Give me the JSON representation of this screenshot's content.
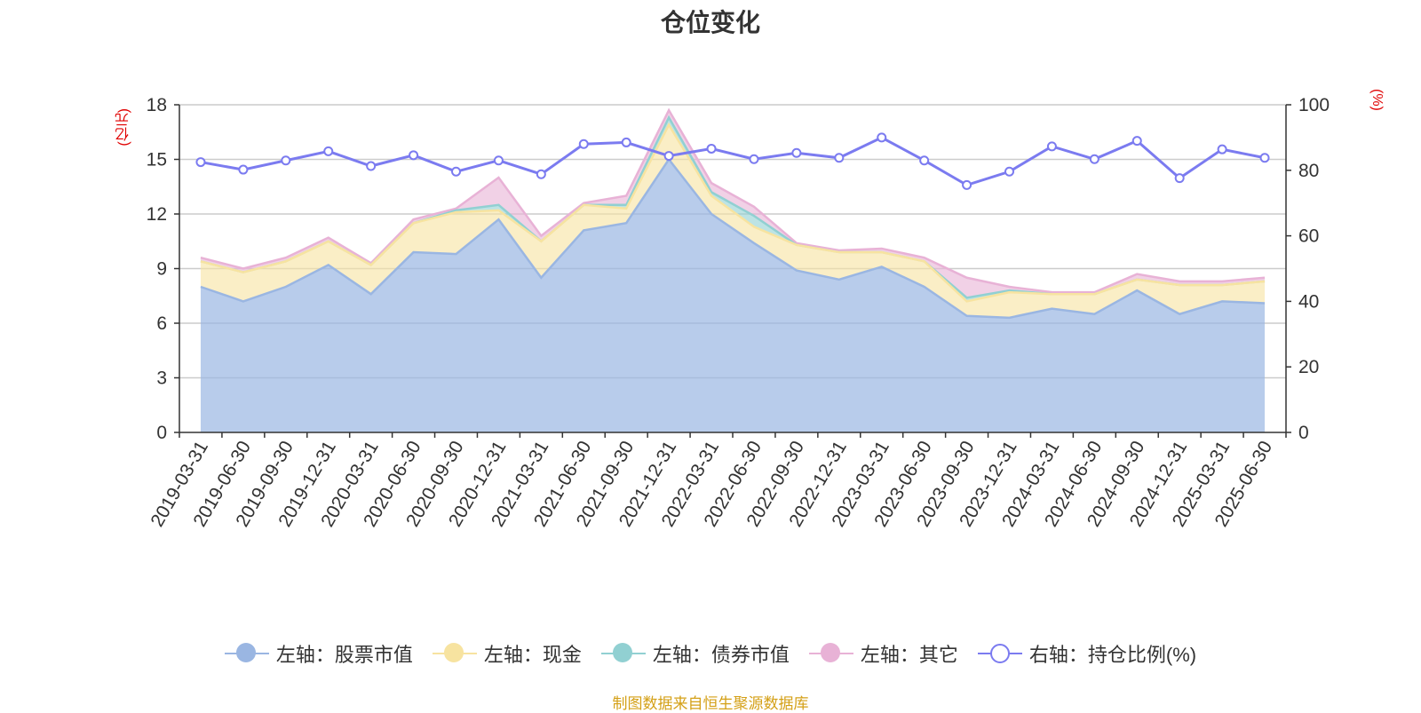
{
  "chart_data": {
    "type": "area",
    "title": "仓位变化",
    "left_axis_unit": "(亿元)",
    "right_axis_unit": "(%)",
    "source": "制图数据来自恒生聚源数据库",
    "categories": [
      "2019-03-31",
      "2019-06-30",
      "2019-09-30",
      "2019-12-31",
      "2020-03-31",
      "2020-06-30",
      "2020-09-30",
      "2020-12-31",
      "2021-03-31",
      "2021-06-30",
      "2021-09-30",
      "2021-12-31",
      "2022-03-31",
      "2022-06-30",
      "2022-09-30",
      "2022-12-31",
      "2023-03-31",
      "2023-06-30",
      "2023-09-30",
      "2023-12-31",
      "2024-03-31",
      "2024-06-30",
      "2024-09-30",
      "2024-12-31",
      "2025-03-31",
      "2025-06-30"
    ],
    "ylim_left": [
      0,
      18
    ],
    "yticks_left": [
      0,
      3,
      6,
      9,
      12,
      15,
      18
    ],
    "ylim_right": [
      0,
      100
    ],
    "yticks_right": [
      0,
      20,
      40,
      60,
      80,
      100
    ],
    "grid": true,
    "legend_position": "bottom",
    "series": [
      {
        "name": "左轴：股票市值",
        "axis": "left",
        "stacked": true,
        "color": "#9ab6e2",
        "values": [
          8.0,
          7.2,
          8.0,
          9.2,
          7.6,
          9.9,
          9.8,
          11.7,
          8.5,
          11.1,
          11.5,
          15.0,
          12.0,
          10.4,
          8.9,
          8.4,
          9.1,
          8.0,
          6.4,
          6.3,
          6.8,
          6.5,
          7.8,
          6.5,
          7.2,
          7.1
        ]
      },
      {
        "name": "左轴：现金",
        "axis": "left",
        "stacked": true,
        "color": "#f7e3a0",
        "values": [
          1.4,
          1.6,
          1.4,
          1.3,
          1.6,
          1.6,
          2.3,
          0.5,
          2.0,
          1.4,
          0.8,
          1.9,
          1.0,
          0.9,
          1.4,
          1.5,
          0.8,
          1.4,
          0.8,
          1.4,
          0.8,
          1.1,
          0.6,
          1.6,
          0.9,
          1.2
        ]
      },
      {
        "name": "左轴：债券市值",
        "axis": "left",
        "stacked": true,
        "color": "#91d0d2",
        "values": [
          0.0,
          0.0,
          0.0,
          0.0,
          0.0,
          0.0,
          0.1,
          0.3,
          0.0,
          0.0,
          0.2,
          0.4,
          0.2,
          0.6,
          0.0,
          0.0,
          0.0,
          0.0,
          0.2,
          0.1,
          0.0,
          0.0,
          0.0,
          0.0,
          0.0,
          0.0
        ]
      },
      {
        "name": "左轴：其它",
        "axis": "left",
        "stacked": true,
        "color": "#e8b2d6",
        "values": [
          0.2,
          0.2,
          0.2,
          0.2,
          0.1,
          0.2,
          0.1,
          1.5,
          0.3,
          0.1,
          0.5,
          0.4,
          0.5,
          0.5,
          0.1,
          0.1,
          0.2,
          0.2,
          1.1,
          0.2,
          0.1,
          0.1,
          0.3,
          0.2,
          0.2,
          0.2
        ]
      },
      {
        "name": "右轴：持仓比例(%)",
        "axis": "right",
        "stacked": false,
        "color": "#7b7bf0",
        "values": [
          82.5,
          80.2,
          83.0,
          85.8,
          81.3,
          84.6,
          79.6,
          83.0,
          78.8,
          88.0,
          88.5,
          84.4,
          86.6,
          83.4,
          85.3,
          83.8,
          90.0,
          83.0,
          75.5,
          79.6,
          87.3,
          83.4,
          89.0,
          77.6,
          86.4,
          83.8
        ]
      }
    ]
  }
}
